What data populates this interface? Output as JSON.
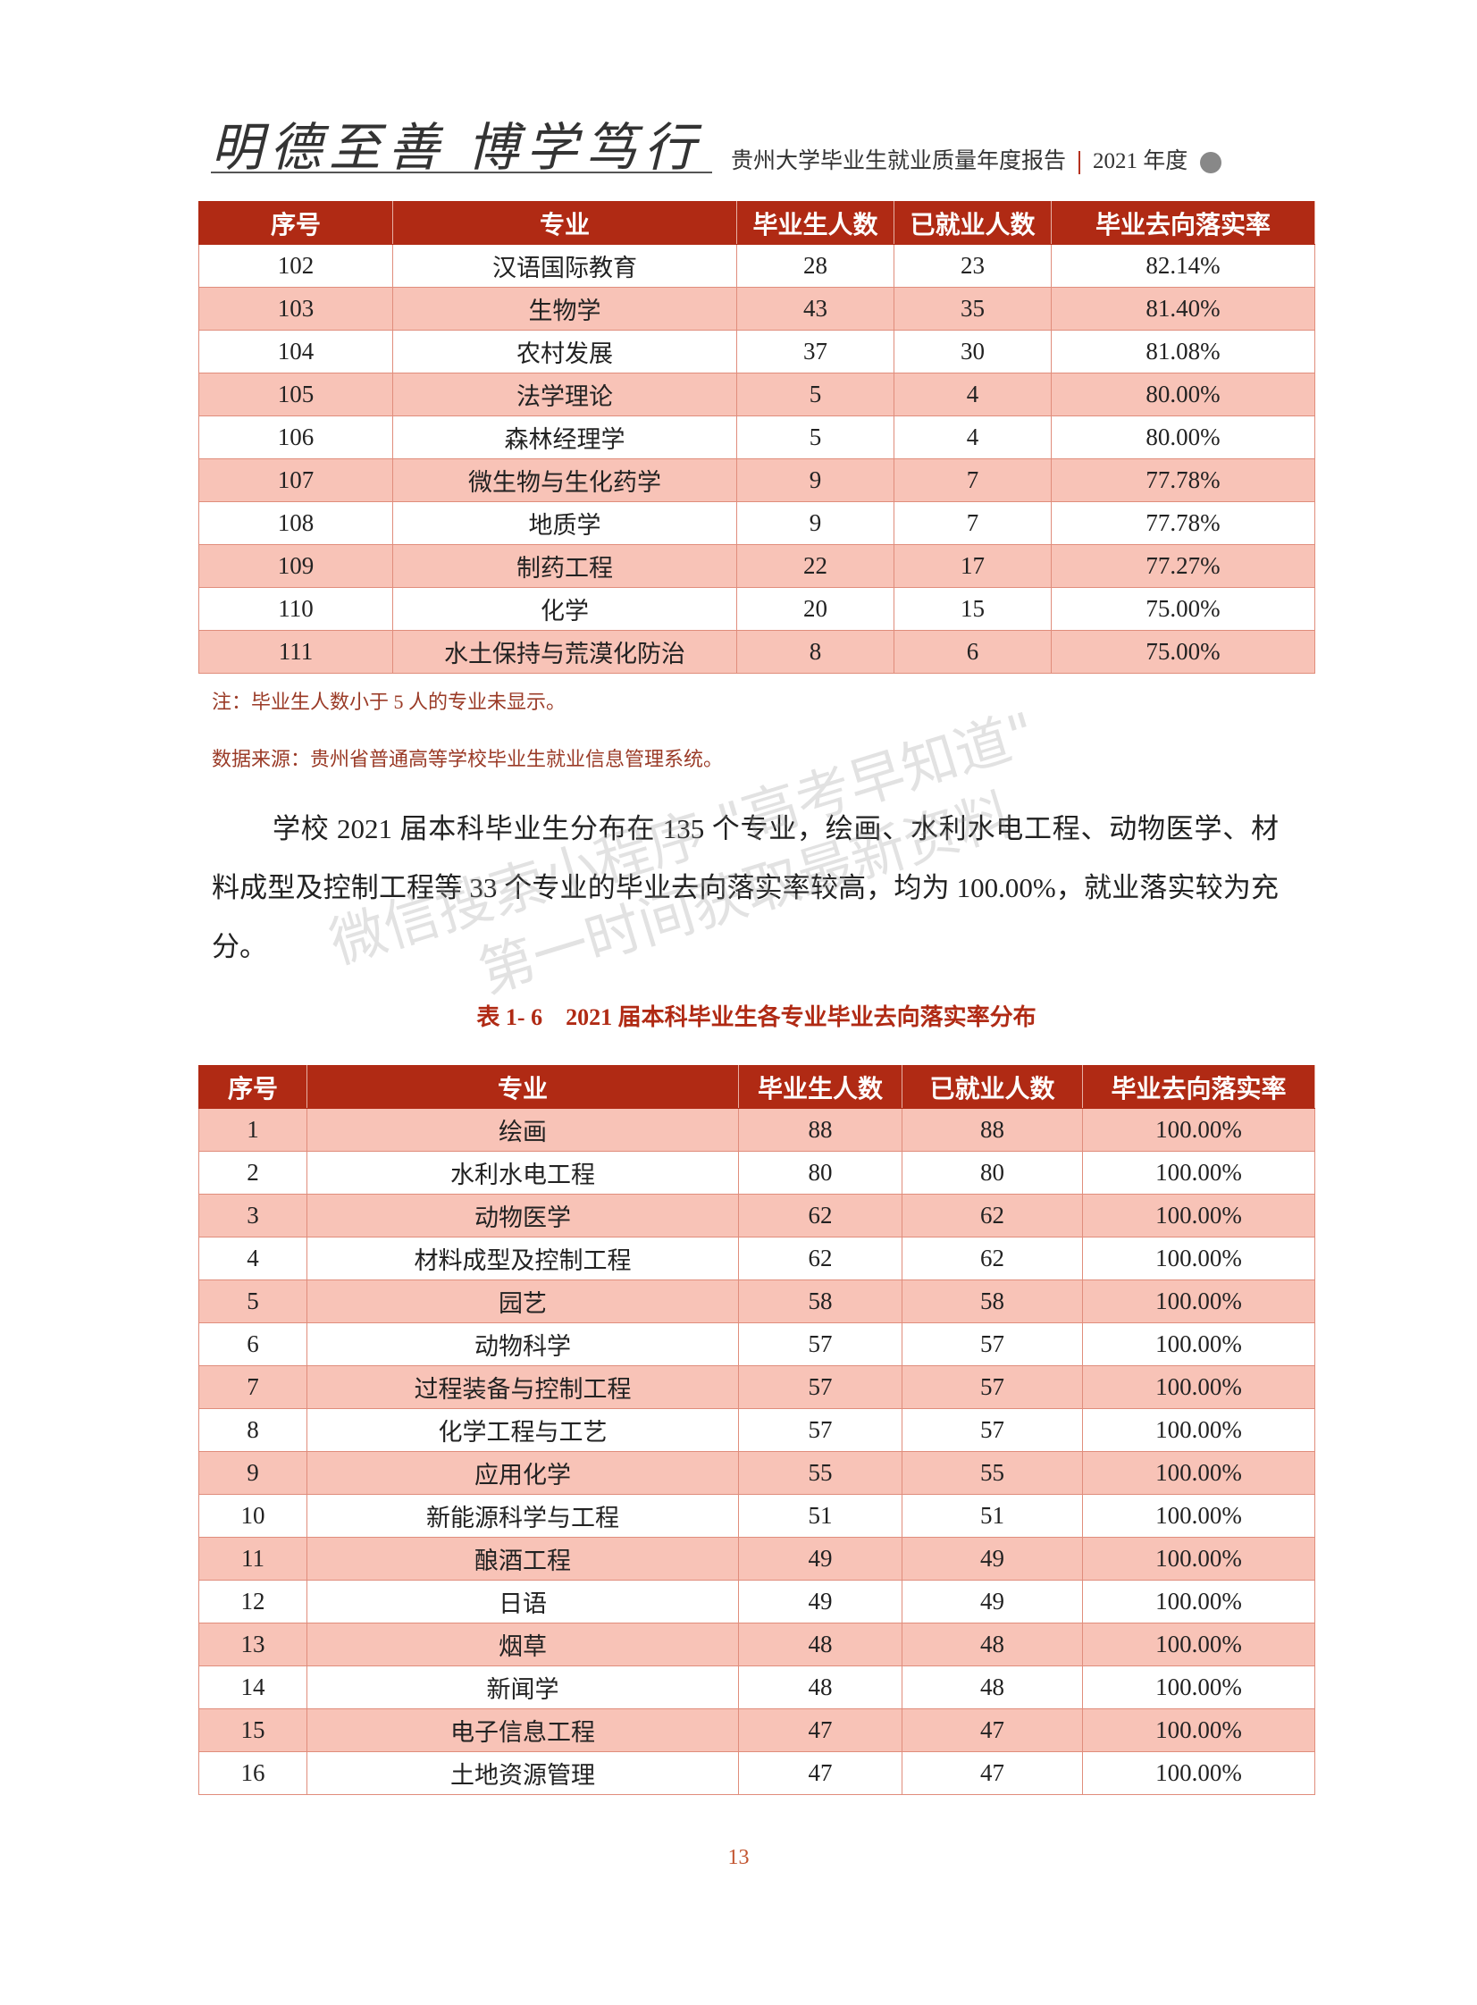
{
  "header": {
    "motto": "明德至善 博学笃行",
    "report_title": "贵州大学毕业生就业质量年度报告",
    "year": "2021 年度"
  },
  "table1": {
    "columns": [
      "序号",
      "专业",
      "毕业生人数",
      "已就业人数",
      "毕业去向落实率"
    ],
    "rows": [
      [
        102,
        "汉语国际教育",
        28,
        23,
        "82.14%"
      ],
      [
        103,
        "生物学",
        43,
        35,
        "81.40%"
      ],
      [
        104,
        "农村发展",
        37,
        30,
        "81.08%"
      ],
      [
        105,
        "法学理论",
        5,
        4,
        "80.00%"
      ],
      [
        106,
        "森林经理学",
        5,
        4,
        "80.00%"
      ],
      [
        107,
        "微生物与生化药学",
        9,
        7,
        "77.78%"
      ],
      [
        108,
        "地质学",
        9,
        7,
        "77.78%"
      ],
      [
        109,
        "制药工程",
        22,
        17,
        "77.27%"
      ],
      [
        110,
        "化学",
        20,
        15,
        "75.00%"
      ],
      [
        111,
        "水土保持与荒漠化防治",
        8,
        6,
        "75.00%"
      ]
    ]
  },
  "notes": [
    "注：毕业生人数小于 5 人的专业未显示。",
    "数据来源：贵州省普通高等学校毕业生就业信息管理系统。"
  ],
  "paragraph": "学校 2021 届本科毕业生分布在 135 个专业，绘画、水利水电工程、动物医学、材料成型及控制工程等 33 个专业的毕业去向落实率较高，均为 100.00%，就业落实较为充分。",
  "table2": {
    "caption": "表 1- 6　2021 届本科毕业生各专业毕业去向落实率分布",
    "columns": [
      "序号",
      "专业",
      "毕业生人数",
      "已就业人数",
      "毕业去向落实率"
    ],
    "rows": [
      [
        1,
        "绘画",
        88,
        88,
        "100.00%"
      ],
      [
        2,
        "水利水电工程",
        80,
        80,
        "100.00%"
      ],
      [
        3,
        "动物医学",
        62,
        62,
        "100.00%"
      ],
      [
        4,
        "材料成型及控制工程",
        62,
        62,
        "100.00%"
      ],
      [
        5,
        "园艺",
        58,
        58,
        "100.00%"
      ],
      [
        6,
        "动物科学",
        57,
        57,
        "100.00%"
      ],
      [
        7,
        "过程装备与控制工程",
        57,
        57,
        "100.00%"
      ],
      [
        8,
        "化学工程与工艺",
        57,
        57,
        "100.00%"
      ],
      [
        9,
        "应用化学",
        55,
        55,
        "100.00%"
      ],
      [
        10,
        "新能源科学与工程",
        51,
        51,
        "100.00%"
      ],
      [
        11,
        "酿酒工程",
        49,
        49,
        "100.00%"
      ],
      [
        12,
        "日语",
        49,
        49,
        "100.00%"
      ],
      [
        13,
        "烟草",
        48,
        48,
        "100.00%"
      ],
      [
        14,
        "新闻学",
        48,
        48,
        "100.00%"
      ],
      [
        15,
        "电子信息工程",
        47,
        47,
        "100.00%"
      ],
      [
        16,
        "土地资源管理",
        47,
        47,
        "100.00%"
      ]
    ]
  },
  "watermark": [
    "微信搜索小程序 \"高考早知道\"",
    "第一时间获取最新资料"
  ],
  "page_number": "13"
}
